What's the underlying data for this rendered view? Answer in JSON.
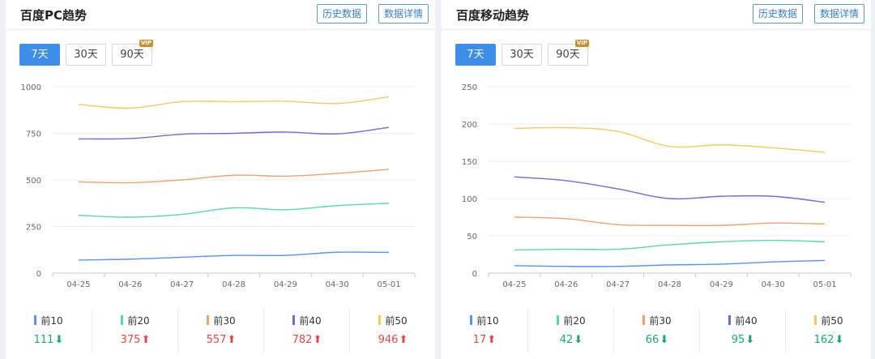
{
  "colors": {
    "top10": "#5b8ff9",
    "top20": "#5ad8a6",
    "top30": "#f5a06b",
    "top40": "#6c6ed6",
    "top50": "#f6c95a",
    "up": "#e54545",
    "down": "#18a86b",
    "accent": "#3d8ee8"
  },
  "panels": {
    "pc": {
      "title": "百度PC趋势",
      "history_btn": "历史数据",
      "detail_btn": "数据详情",
      "tabs": [
        "7天",
        "30天",
        "90天"
      ],
      "vip": "VIP",
      "legend": [
        {
          "label": "前10",
          "value": "111",
          "trend": "down"
        },
        {
          "label": "前20",
          "value": "375",
          "trend": "up"
        },
        {
          "label": "前30",
          "value": "557",
          "trend": "up"
        },
        {
          "label": "前40",
          "value": "782",
          "trend": "up"
        },
        {
          "label": "前50",
          "value": "946",
          "trend": "up"
        }
      ]
    },
    "mobile": {
      "title": "百度移动趋势",
      "history_btn": "历史数据",
      "detail_btn": "数据详情",
      "tabs": [
        "7天",
        "30天",
        "90天"
      ],
      "vip": "VIP",
      "legend": [
        {
          "label": "前10",
          "value": "17",
          "trend": "up"
        },
        {
          "label": "前20",
          "value": "42",
          "trend": "down"
        },
        {
          "label": "前30",
          "value": "66",
          "trend": "down"
        },
        {
          "label": "前40",
          "value": "95",
          "trend": "down"
        },
        {
          "label": "前50",
          "value": "162",
          "trend": "down"
        }
      ]
    }
  },
  "chart_data": [
    {
      "type": "line",
      "x": [
        "04-25",
        "04-26",
        "04-27",
        "04-28",
        "04-29",
        "04-30",
        "05-01"
      ],
      "ylim": [
        0,
        1000
      ],
      "yticks": [
        0,
        250,
        500,
        750,
        1000
      ],
      "grid": true,
      "series": [
        {
          "name": "前10",
          "color": "#5b8ff9",
          "values": [
            70,
            75,
            85,
            95,
            95,
            112,
            111
          ]
        },
        {
          "name": "前20",
          "color": "#5ad8a6",
          "values": [
            310,
            300,
            315,
            350,
            340,
            362,
            375
          ]
        },
        {
          "name": "前30",
          "color": "#f5a06b",
          "values": [
            490,
            485,
            500,
            525,
            520,
            535,
            557
          ]
        },
        {
          "name": "前40",
          "color": "#6c6ed6",
          "values": [
            720,
            722,
            745,
            750,
            757,
            747,
            782
          ]
        },
        {
          "name": "前50",
          "color": "#f6c95a",
          "values": [
            905,
            885,
            920,
            920,
            922,
            910,
            946
          ]
        }
      ]
    },
    {
      "type": "line",
      "x": [
        "04-25",
        "04-26",
        "04-27",
        "04-28",
        "04-29",
        "04-30",
        "05-01"
      ],
      "ylim": [
        0,
        250
      ],
      "yticks": [
        0,
        50,
        100,
        150,
        200,
        250
      ],
      "grid": true,
      "series": [
        {
          "name": "前10",
          "color": "#5b8ff9",
          "values": [
            10,
            9,
            9,
            11,
            12,
            15,
            17
          ]
        },
        {
          "name": "前20",
          "color": "#5ad8a6",
          "values": [
            31,
            32,
            32,
            38,
            42,
            44,
            42
          ]
        },
        {
          "name": "前30",
          "color": "#f5a06b",
          "values": [
            75,
            73,
            65,
            64,
            64,
            67,
            66
          ]
        },
        {
          "name": "前40",
          "color": "#6c6ed6",
          "values": [
            129,
            124,
            113,
            100,
            103,
            103,
            95
          ]
        },
        {
          "name": "前50",
          "color": "#f6c95a",
          "values": [
            194,
            195,
            190,
            170,
            172,
            168,
            162
          ]
        }
      ]
    }
  ]
}
